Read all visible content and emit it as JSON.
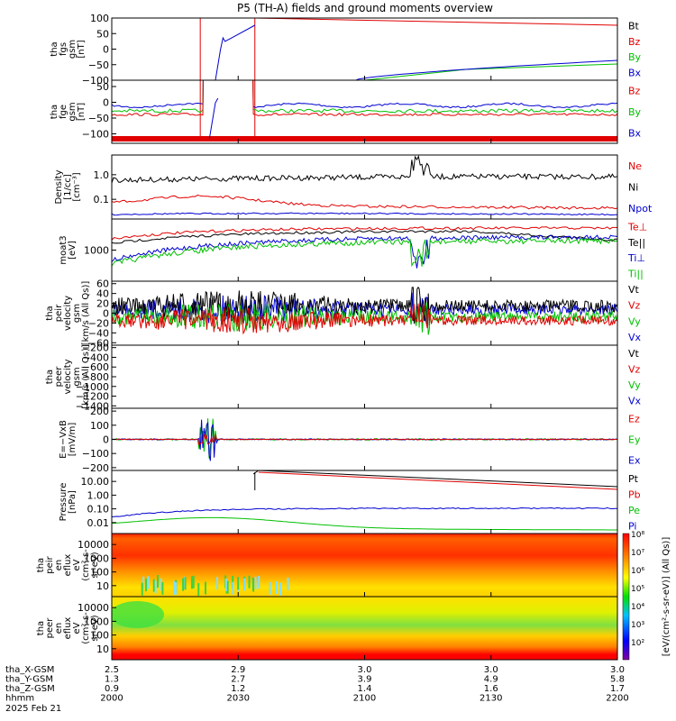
{
  "title": "P5 (TH-A) fields and ground moments overview",
  "date_label": "2025 Feb 21",
  "time_axis": {
    "range": [
      "2000",
      "2200"
    ],
    "rows": [
      {
        "label": "tha_X-GSM",
        "values": [
          "2.5",
          "2.9",
          "3.0",
          "3.0",
          "3.0"
        ]
      },
      {
        "label": "tha_Y-GSM",
        "values": [
          "1.3",
          "2.7",
          "3.9",
          "4.9",
          "5.8"
        ]
      },
      {
        "label": "tha_Z-GSM",
        "values": [
          "0.9",
          "1.2",
          "1.4",
          "1.6",
          "1.7"
        ]
      },
      {
        "label": "hhmm",
        "values": [
          "2000",
          "2030",
          "2100",
          "2130",
          "2200"
        ]
      }
    ]
  },
  "colors": {
    "black": "#000000",
    "red": "#e00000",
    "green": "#00c000",
    "blue": "#0000d0"
  },
  "colorbar_label": "[eV/(cm²-s-sr-eV)] (All Qs)]",
  "colorbar_ticks": [
    "10⁸",
    "10⁷",
    "10⁶",
    "10⁵",
    "10⁴",
    "10³",
    "10²"
  ],
  "chart_data": [
    {
      "type": "line",
      "ylabel": [
        "tha",
        "fgs",
        "gsm",
        "[nT]"
      ],
      "ylim": [
        -100,
        100
      ],
      "yticks": [
        "100",
        "50",
        "0",
        "−50",
        "−100"
      ],
      "series": [
        {
          "name": "Bt",
          "color": "black"
        },
        {
          "name": "Bz",
          "color": "red"
        },
        {
          "name": "By",
          "color": "green"
        },
        {
          "name": "Bx",
          "color": "blue"
        }
      ]
    },
    {
      "type": "line",
      "ylabel": [
        "tha",
        "fge",
        "gsm",
        "[nT]"
      ],
      "ylim": [
        -130,
        70
      ],
      "yticks": [
        "50",
        "0",
        "−50",
        "−100"
      ],
      "series": [
        {
          "name": "Bz",
          "color": "red"
        },
        {
          "name": "By",
          "color": "green"
        },
        {
          "name": "Bx",
          "color": "blue"
        }
      ]
    },
    {
      "type": "line",
      "ylabel": [
        "Density",
        "[1/cc]",
        "[cm⁻³]"
      ],
      "yscale": "log",
      "yticks": [
        "1.0",
        "0.1"
      ],
      "series": [
        {
          "name": "Ne",
          "color": "red"
        },
        {
          "name": "Ni",
          "color": "black"
        },
        {
          "name": "Npot",
          "color": "blue"
        }
      ]
    },
    {
      "type": "line",
      "ylabel": [
        "moat3",
        "[eV]"
      ],
      "yscale": "log",
      "yticks": [
        "1000"
      ],
      "series": [
        {
          "name": "Te⊥",
          "color": "red"
        },
        {
          "name": "Te||",
          "color": "black"
        },
        {
          "name": "Ti⊥",
          "color": "blue"
        },
        {
          "name": "Ti||",
          "color": "green"
        }
      ]
    },
    {
      "type": "line",
      "ylabel": [
        "tha",
        "peir",
        "velocity",
        "gsm",
        "[km/s (All Qs)]"
      ],
      "ylim": [
        -65,
        65
      ],
      "yticks": [
        "60",
        "40",
        "20",
        "0",
        "−20",
        "−40",
        "−60"
      ],
      "series": [
        {
          "name": "Vt",
          "color": "black"
        },
        {
          "name": "Vz",
          "color": "red"
        },
        {
          "name": "Vy",
          "color": "green"
        },
        {
          "name": "Vx",
          "color": "blue"
        }
      ]
    },
    {
      "type": "line",
      "ylabel": [
        "tha",
        "peer",
        "velocity",
        "gsm",
        "[km/s (All Qs)]"
      ],
      "ylim": [
        -1450,
        -150
      ],
      "yticks": [
        "−200",
        "−400",
        "−600",
        "−800",
        "−1000",
        "−1200",
        "−1400"
      ],
      "series": [
        {
          "name": "Vt",
          "color": "black"
        },
        {
          "name": "Vz",
          "color": "red"
        },
        {
          "name": "Vy",
          "color": "green"
        },
        {
          "name": "Vx",
          "color": "blue"
        }
      ]
    },
    {
      "type": "line",
      "ylabel": [
        "E=−VxB",
        "[mV/m]"
      ],
      "ylim": [
        -220,
        220
      ],
      "yticks": [
        "200",
        "100",
        "0",
        "−100",
        "−200"
      ],
      "series": [
        {
          "name": "Ez",
          "color": "red"
        },
        {
          "name": "Ey",
          "color": "green"
        },
        {
          "name": "Ex",
          "color": "blue"
        }
      ]
    },
    {
      "type": "line",
      "ylabel": [
        "Pressure",
        "[nPa]"
      ],
      "yscale": "log",
      "yticks": [
        "10.00",
        "1.00",
        "0.10",
        "0.01"
      ],
      "series": [
        {
          "name": "Pt",
          "color": "black"
        },
        {
          "name": "Pb",
          "color": "red"
        },
        {
          "name": "Pe",
          "color": "green"
        },
        {
          "name": "Pi",
          "color": "blue"
        }
      ]
    },
    {
      "type": "heatmap",
      "ylabel": [
        "tha",
        "peir",
        "en",
        "eflux",
        "eV",
        "(cm²-s-",
        "sr-eV)"
      ],
      "yscale": "log",
      "yticks": [
        "10000",
        "1000",
        "100",
        "10"
      ]
    },
    {
      "type": "heatmap",
      "ylabel": [
        "tha",
        "peer",
        "en",
        "eflux",
        "eV",
        "(cm²-s-",
        "sr-eV)"
      ],
      "yscale": "log",
      "yticks": [
        "10000",
        "1000",
        "100",
        "10"
      ]
    }
  ]
}
